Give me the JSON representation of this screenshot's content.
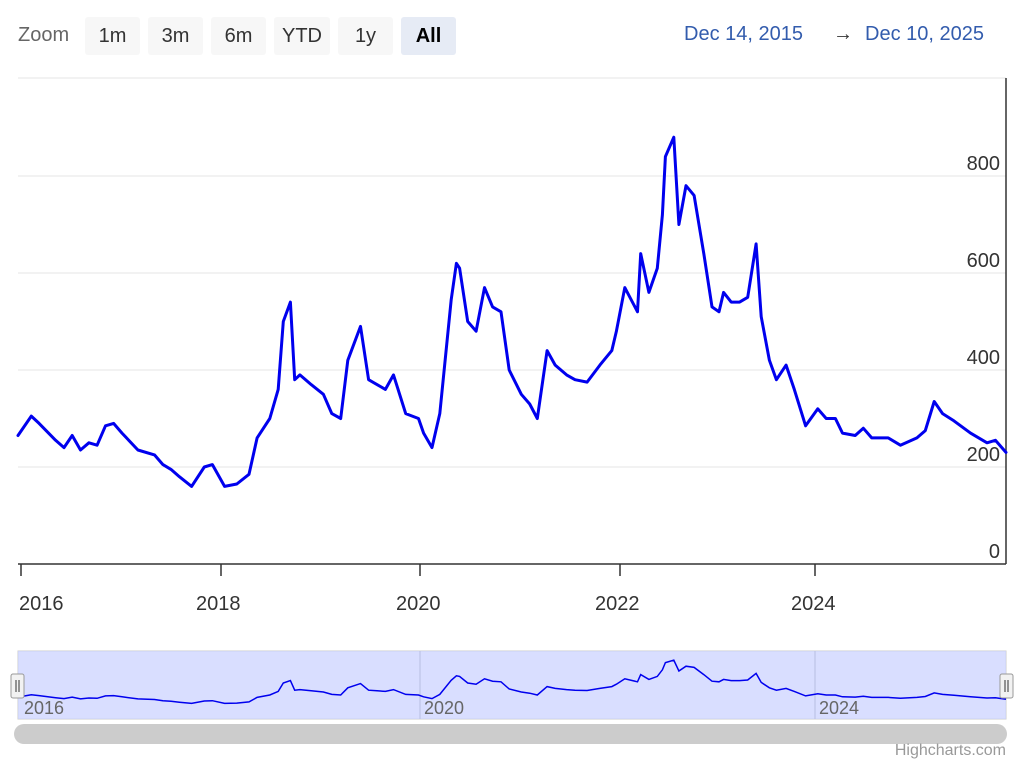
{
  "toolbar": {
    "zoom_label": "Zoom",
    "buttons": [
      "1m",
      "3m",
      "6m",
      "YTD",
      "1y",
      "All"
    ],
    "active_button": "All",
    "range_from": "Dec 14, 2015",
    "range_arrow": "→",
    "range_to": "Dec 10, 2025"
  },
  "colors": {
    "series": "#0000ee",
    "navigator_fill": "#ccd3ff",
    "grid": "#e6e6e6",
    "link": "#335cad"
  },
  "credits": "Highcharts.com",
  "chart_data": {
    "type": "line",
    "title": "",
    "xlabel": "",
    "ylabel": "",
    "x_ticks": [
      "2016",
      "2018",
      "2020",
      "2022",
      "2024"
    ],
    "y_ticks": [
      "0",
      "200",
      "400",
      "600",
      "800"
    ],
    "navigator_ticks": [
      "2016",
      "2020",
      "2024"
    ],
    "xlim": [
      "2015-12-14",
      "2025-12-10"
    ],
    "ylim": [
      0,
      1000
    ],
    "y_axis_side": "right",
    "grid": true,
    "legend": "none",
    "series": [
      {
        "points": [
          [
            "2015-12-14",
            265
          ],
          [
            "2016-02-01",
            305
          ],
          [
            "2016-03-01",
            290
          ],
          [
            "2016-05-01",
            255
          ],
          [
            "2016-06-01",
            240
          ],
          [
            "2016-07-01",
            265
          ],
          [
            "2016-08-01",
            235
          ],
          [
            "2016-09-01",
            250
          ],
          [
            "2016-10-01",
            245
          ],
          [
            "2016-11-01",
            285
          ],
          [
            "2016-12-01",
            290
          ],
          [
            "2017-01-01",
            270
          ],
          [
            "2017-03-01",
            235
          ],
          [
            "2017-05-01",
            225
          ],
          [
            "2017-06-01",
            205
          ],
          [
            "2017-07-01",
            195
          ],
          [
            "2017-08-01",
            180
          ],
          [
            "2017-09-15",
            160
          ],
          [
            "2017-11-01",
            200
          ],
          [
            "2017-12-01",
            205
          ],
          [
            "2018-01-15",
            160
          ],
          [
            "2018-03-01",
            165
          ],
          [
            "2018-04-15",
            185
          ],
          [
            "2018-05-15",
            260
          ],
          [
            "2018-07-01",
            300
          ],
          [
            "2018-08-01",
            360
          ],
          [
            "2018-08-20",
            500
          ],
          [
            "2018-09-15",
            540
          ],
          [
            "2018-10-01",
            380
          ],
          [
            "2018-10-20",
            390
          ],
          [
            "2018-12-01",
            370
          ],
          [
            "2019-01-15",
            350
          ],
          [
            "2019-02-15",
            310
          ],
          [
            "2019-03-20",
            300
          ],
          [
            "2019-04-15",
            420
          ],
          [
            "2019-06-01",
            490
          ],
          [
            "2019-07-01",
            380
          ],
          [
            "2019-08-01",
            370
          ],
          [
            "2019-09-01",
            360
          ],
          [
            "2019-10-01",
            390
          ],
          [
            "2019-11-15",
            310
          ],
          [
            "2020-01-01",
            300
          ],
          [
            "2020-01-20",
            270
          ],
          [
            "2020-02-20",
            240
          ],
          [
            "2020-03-20",
            310
          ],
          [
            "2020-05-01",
            545
          ],
          [
            "2020-05-20",
            620
          ],
          [
            "2020-06-01",
            610
          ],
          [
            "2020-07-01",
            500
          ],
          [
            "2020-08-01",
            480
          ],
          [
            "2020-09-01",
            570
          ],
          [
            "2020-10-01",
            530
          ],
          [
            "2020-11-01",
            520
          ],
          [
            "2020-12-01",
            400
          ],
          [
            "2021-01-15",
            350
          ],
          [
            "2021-02-15",
            330
          ],
          [
            "2021-03-15",
            300
          ],
          [
            "2021-04-20",
            440
          ],
          [
            "2021-05-20",
            410
          ],
          [
            "2021-07-01",
            390
          ],
          [
            "2021-08-01",
            380
          ],
          [
            "2021-09-15",
            375
          ],
          [
            "2021-11-01",
            410
          ],
          [
            "2021-12-15",
            440
          ],
          [
            "2022-01-01",
            480
          ],
          [
            "2022-02-01",
            570
          ],
          [
            "2022-03-20",
            520
          ],
          [
            "2022-04-01",
            640
          ],
          [
            "2022-05-01",
            560
          ],
          [
            "2022-06-01",
            610
          ],
          [
            "2022-06-20",
            720
          ],
          [
            "2022-07-01",
            840
          ],
          [
            "2022-08-01",
            880
          ],
          [
            "2022-08-20",
            700
          ],
          [
            "2022-09-15",
            780
          ],
          [
            "2022-10-15",
            760
          ],
          [
            "2022-11-20",
            640
          ],
          [
            "2022-12-20",
            530
          ],
          [
            "2023-01-15",
            520
          ],
          [
            "2023-02-01",
            560
          ],
          [
            "2023-03-01",
            540
          ],
          [
            "2023-04-01",
            540
          ],
          [
            "2023-05-01",
            550
          ],
          [
            "2023-06-01",
            660
          ],
          [
            "2023-06-20",
            510
          ],
          [
            "2023-07-20",
            420
          ],
          [
            "2023-08-15",
            380
          ],
          [
            "2023-09-20",
            410
          ],
          [
            "2023-10-20",
            360
          ],
          [
            "2023-12-01",
            285
          ],
          [
            "2024-01-15",
            320
          ],
          [
            "2024-02-15",
            300
          ],
          [
            "2024-03-20",
            300
          ],
          [
            "2024-04-15",
            270
          ],
          [
            "2024-06-01",
            265
          ],
          [
            "2024-07-01",
            280
          ],
          [
            "2024-08-01",
            260
          ],
          [
            "2024-10-01",
            260
          ],
          [
            "2024-11-15",
            245
          ],
          [
            "2025-01-15",
            260
          ],
          [
            "2025-02-15",
            275
          ],
          [
            "2025-03-20",
            335
          ],
          [
            "2025-04-20",
            310
          ],
          [
            "2025-06-01",
            295
          ],
          [
            "2025-08-01",
            270
          ],
          [
            "2025-10-01",
            250
          ],
          [
            "2025-11-01",
            255
          ],
          [
            "2025-12-10",
            230
          ]
        ]
      }
    ]
  }
}
